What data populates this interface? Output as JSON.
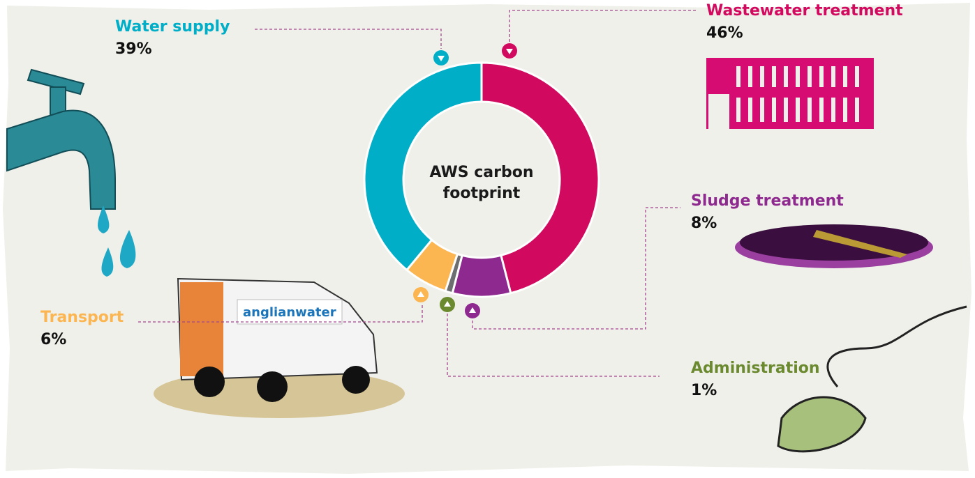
{
  "chart_data": {
    "type": "pie",
    "title": "AWS carbon footprint",
    "categories": [
      "Wastewater treatment",
      "Sludge treatment",
      "Administration",
      "Transport",
      "Water supply"
    ],
    "values": [
      46,
      8,
      1,
      6,
      39
    ],
    "value_labels": [
      "46%",
      "8%",
      "1%",
      "6%",
      "39%"
    ],
    "colors": [
      "#d20a5f",
      "#8e2a8f",
      "#6d6e70",
      "#fbb652",
      "#00aec7"
    ],
    "label_colors": [
      "#d20a5f",
      "#8e2a8f",
      "#6b8a2f",
      "#fbb652",
      "#00aec7"
    ],
    "donut": true
  },
  "illustration_text": "anglianwater"
}
